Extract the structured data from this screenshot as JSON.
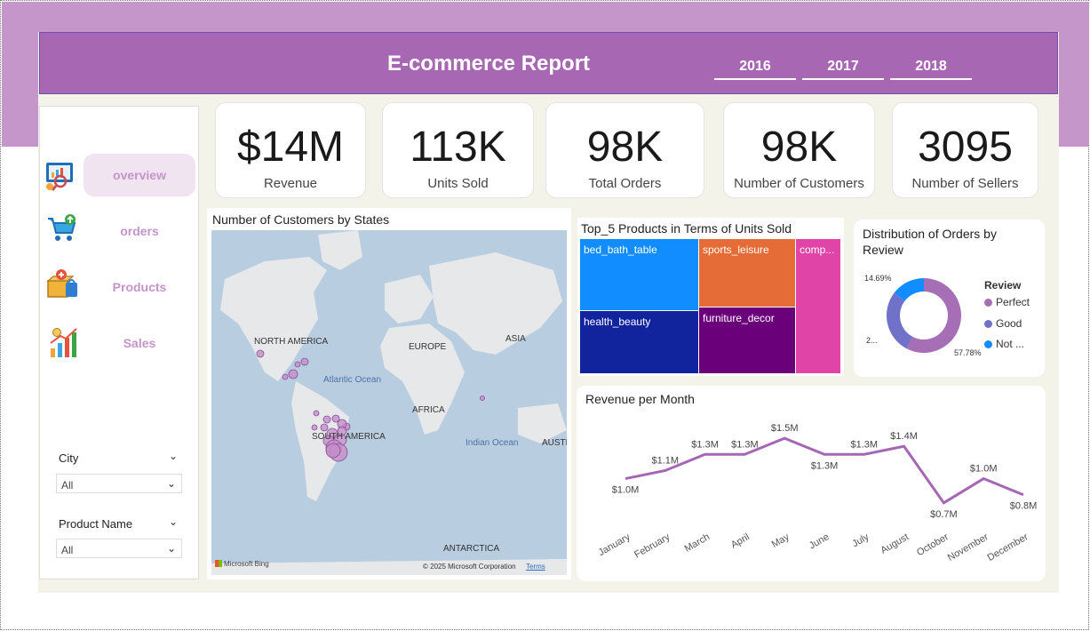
{
  "header": {
    "title": "E-commerce Report",
    "years": [
      "2016",
      "2017",
      "2018"
    ]
  },
  "nav": [
    {
      "label": "overview",
      "icon": "overview-chart-icon",
      "active": true
    },
    {
      "label": "orders",
      "icon": "shopping-cart-icon",
      "active": false
    },
    {
      "label": "Products",
      "icon": "products-box-icon",
      "active": false
    },
    {
      "label": "Sales",
      "icon": "sales-growth-icon",
      "active": false
    }
  ],
  "filters": [
    {
      "label": "City",
      "value": "All"
    },
    {
      "label": "Product Name",
      "value": "All"
    }
  ],
  "kpis": [
    {
      "value": "$14M",
      "label": "Revenue"
    },
    {
      "value": "113K",
      "label": "Units Sold"
    },
    {
      "value": "98K",
      "label": "Total Orders"
    },
    {
      "value": "98K",
      "label": "Number of Customers"
    },
    {
      "value": "3095",
      "label": "Number of Sellers"
    }
  ],
  "map": {
    "title": "Number of Customers by States",
    "labels": {
      "north_america": "NORTH AMERICA",
      "europe": "EUROPE",
      "asia": "ASIA",
      "africa": "AFRICA",
      "south_america": "SOUTH AMERICA",
      "antarctica": "ANTARCTICA",
      "australia": "AUSTR",
      "atlantic": "Atlantic Ocean",
      "indian": "Indian Ocean"
    },
    "attribution": "Microsoft Bing",
    "copyright": "© 2025 Microsoft Corporation",
    "terms": "Terms"
  },
  "treemap": {
    "title": "Top_5 Products in Terms of Units Sold",
    "tiles": [
      "bed_bath_table",
      "health_beauty",
      "sports_leisure",
      "furniture_decor",
      "comp..."
    ],
    "colors": [
      "#118dff",
      "#12239e",
      "#e66c37",
      "#6b007b",
      "#e044a7"
    ]
  },
  "donut": {
    "title": "Distribution of Orders by Review",
    "legend_title": "Review",
    "legend": [
      "Perfect",
      "Good",
      "Not ..."
    ],
    "colors": [
      "#a66fb5",
      "#6f72c8",
      "#118dff"
    ],
    "values": [
      57.78,
      27.53,
      14.69
    ],
    "labels": [
      "57.78%",
      "2...",
      "14.69%"
    ]
  },
  "chart_data": {
    "type": "line",
    "title": "Revenue per Month",
    "categories": [
      "January",
      "February",
      "March",
      "April",
      "May",
      "June",
      "July",
      "August",
      "October",
      "November",
      "December"
    ],
    "values": [
      1.0,
      1.1,
      1.3,
      1.3,
      1.5,
      1.3,
      1.3,
      1.4,
      0.7,
      1.0,
      0.8
    ],
    "data_labels": [
      "$1.0M",
      "$1.1M",
      "$1.3M",
      "$1.3M",
      "$1.5M",
      "$1.3M",
      "$1.3M",
      "$1.4M",
      "$0.7M",
      "$1.0M",
      "$0.8M"
    ],
    "color": "#a566b5",
    "ylim": [
      0.5,
      1.6
    ]
  },
  "colors": {
    "header": "#a767b2",
    "band": "#c596ca",
    "canvas": "#f4f3ea",
    "nav_text": "#c594c9"
  }
}
